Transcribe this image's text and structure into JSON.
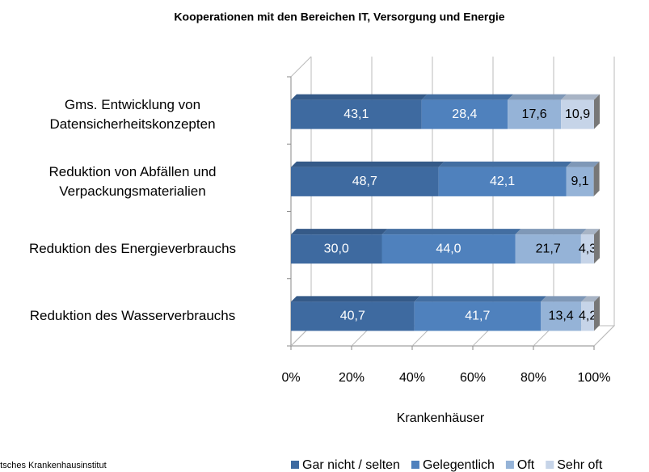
{
  "chart_data": {
    "type": "stacked-bar-horizontal",
    "title": "Kooperationen mit den Bereichen IT, Versorgung und Energie",
    "categories": [
      "Gms. Entwicklung von\nDatensicherheitskonzepten",
      "Reduktion von Abfällen und\nVerpackungsmaterialien",
      "Reduktion des Energieverbrauchs",
      "Reduktion des Wasserverbrauchs"
    ],
    "series": [
      {
        "name": "Gar nicht / selten",
        "color": "#3e6aa0",
        "values": [
          43.1,
          48.7,
          30.0,
          40.7
        ],
        "value_labels": [
          "43,1",
          "48,7",
          "30,0",
          "40,7"
        ]
      },
      {
        "name": "Gelegentlich",
        "color": "#4f81bd",
        "values": [
          28.4,
          42.1,
          44.0,
          41.7
        ],
        "value_labels": [
          "28,4",
          "42,1",
          "44,0",
          "41,7"
        ]
      },
      {
        "name": "Oft",
        "color": "#95b3d7",
        "values": [
          17.6,
          9.1,
          21.7,
          13.4
        ],
        "value_labels": [
          "17,6",
          "9,1",
          "21,7",
          "13,4"
        ]
      },
      {
        "name": "Sehr oft",
        "color": "#c6d4e8",
        "values": [
          10.9,
          null,
          4.3,
          4.2
        ],
        "value_labels": [
          "10,9",
          null,
          "4,3",
          "4,2"
        ]
      }
    ],
    "xlim": [
      0,
      100
    ],
    "xticks": [
      {
        "value": 0,
        "label": "0%"
      },
      {
        "value": 20,
        "label": "20%"
      },
      {
        "value": 40,
        "label": "40%"
      },
      {
        "value": 60,
        "label": "60%"
      },
      {
        "value": 80,
        "label": "80%"
      },
      {
        "value": 100,
        "label": "100%"
      }
    ],
    "xlabel": "Krankenhäuser",
    "source": "Deutsches Krankenhausinstitut",
    "legend": "bottom",
    "grid": true
  }
}
